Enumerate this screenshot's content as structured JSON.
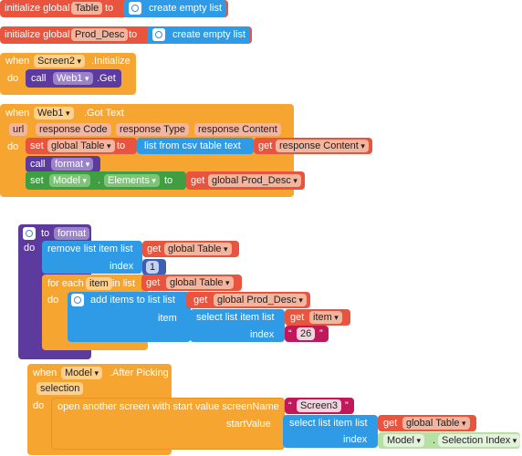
{
  "colors": {
    "var_orange": "#e8543e",
    "list_blue": "#2f9be6",
    "event_gold": "#f7a531",
    "proc_purple": "#5c3a9e",
    "comp_green": "#3f9e42",
    "math_blue": "#3d5fb3",
    "text_pink": "#c2185b",
    "field_peach": "#f4b59e",
    "field_lgreen": "#b6e0a4"
  },
  "b1": {
    "initialize_global": "initialize global",
    "name": "Table",
    "to": "to",
    "create_empty_list": "create empty list",
    "icon": "gear-icon"
  },
  "b2": {
    "initialize_global": "initialize global",
    "name": "Prod_Desc",
    "to": "to",
    "create_empty_list": "create empty list",
    "icon": "gear-icon"
  },
  "b3": {
    "when": "when",
    "component": "Screen2",
    "event": ".Initialize",
    "do": "do",
    "call": "call",
    "target": "Web1",
    "method": ".Get"
  },
  "b4": {
    "when": "when",
    "component": "Web1",
    "event": ".Got Text",
    "params": [
      "url",
      "response Code",
      "response Type",
      "response Content"
    ],
    "do": "do",
    "set": "set",
    "set_var": "global Table",
    "to": "to",
    "list_from_csv": "list from csv table  text",
    "get": "get",
    "get_var": "response Content",
    "call": "call",
    "call_proc": "format",
    "set2": "set",
    "set2_component": "Model",
    "dot": ".",
    "set2_prop": "Elements",
    "to2": "to",
    "get2": "get",
    "get2_var": "global Prod_Desc"
  },
  "b5": {
    "to": "to",
    "proc_name": "format",
    "do": "do",
    "remove_list_item": "remove list item  list",
    "get": "get",
    "remove_var": "global Table",
    "index_label": "index",
    "index_value": "1",
    "for_each": "for each",
    "item_var": "item",
    "in_list": "in list",
    "get2": "get",
    "loop_var": "global Table",
    "do2": "do",
    "add_items": "add items to list   list",
    "get3": "get",
    "add_var": "global Prod_Desc",
    "item_label": "item",
    "select_list_item": "select list item  list",
    "get4": "get",
    "select_var": "item",
    "index2_label": "index",
    "index2_value": "26",
    "icon": "gear-icon"
  },
  "b6": {
    "when": "when",
    "component": "Model",
    "event": ".After Picking",
    "param": "selection",
    "do": "do",
    "open_screen": "open another screen with start value  screenName",
    "screen_name": "Screen3",
    "start_value": "startValue",
    "select_list_item": "select list item  list",
    "get": "get",
    "get_var": "global Table",
    "index_label": "index",
    "comp": "Model",
    "dot": ".",
    "prop": "Selection Index"
  }
}
